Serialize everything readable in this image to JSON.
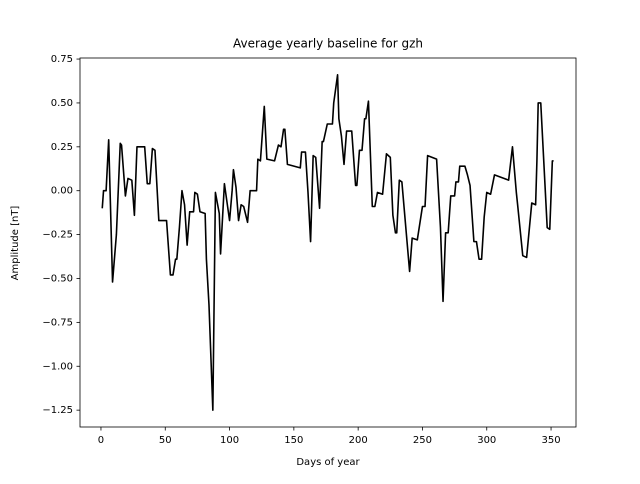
{
  "chart_data": {
    "type": "line",
    "title": "Average yearly baseline for gzh",
    "x_label": "Days of year",
    "y_label": "Amplitude [nT]",
    "color": "#000000",
    "x": [
      1,
      2,
      4,
      6,
      9,
      12,
      15,
      16,
      19,
      21,
      24,
      26,
      28,
      34,
      36,
      38,
      40,
      42,
      45,
      51,
      54,
      56,
      58,
      59,
      61,
      63,
      65,
      67,
      69,
      72,
      73,
      75,
      77,
      81,
      82,
      84,
      87,
      89,
      92,
      93,
      96,
      100,
      102,
      103,
      105,
      107,
      109,
      111,
      114,
      116,
      121,
      122,
      124,
      127,
      129,
      135,
      138,
      140,
      142,
      143,
      145,
      155,
      156,
      159,
      161,
      163,
      165,
      167,
      170,
      172,
      173,
      176,
      180,
      181,
      184,
      185,
      187,
      189,
      191,
      195,
      198,
      199,
      201,
      203,
      205,
      206,
      208,
      211,
      213,
      215,
      219,
      222,
      225,
      227,
      229,
      230,
      232,
      234,
      240,
      242,
      246,
      250,
      252,
      254,
      261,
      264,
      266,
      268,
      270,
      272,
      275,
      276,
      278,
      279,
      283,
      285,
      287,
      290,
      292,
      294,
      296,
      298,
      300,
      303,
      306,
      317,
      320,
      323,
      324,
      328,
      331,
      335,
      338,
      339,
      340,
      342,
      347,
      349,
      351,
      352
    ],
    "values": [
      -0.1,
      0.0,
      0.0,
      0.29,
      -0.52,
      -0.25,
      0.27,
      0.26,
      -0.03,
      0.07,
      0.06,
      -0.14,
      0.25,
      0.25,
      0.04,
      0.04,
      0.24,
      0.23,
      -0.17,
      -0.17,
      -0.48,
      -0.48,
      -0.39,
      -0.39,
      -0.21,
      0.0,
      -0.08,
      -0.31,
      -0.12,
      -0.12,
      -0.01,
      -0.02,
      -0.12,
      -0.13,
      -0.39,
      -0.65,
      -1.25,
      -0.01,
      -0.13,
      -0.36,
      0.04,
      -0.17,
      0.0,
      0.12,
      0.02,
      -0.17,
      -0.08,
      -0.09,
      -0.18,
      0.0,
      0.0,
      0.18,
      0.17,
      0.48,
      0.18,
      0.17,
      0.26,
      0.25,
      0.35,
      0.35,
      0.15,
      0.13,
      0.22,
      0.22,
      -0.01,
      -0.29,
      0.2,
      0.19,
      -0.1,
      0.28,
      0.28,
      0.38,
      0.38,
      0.5,
      0.66,
      0.41,
      0.31,
      0.15,
      0.34,
      0.34,
      0.03,
      0.03,
      0.23,
      0.23,
      0.41,
      0.41,
      0.51,
      -0.09,
      -0.09,
      -0.01,
      -0.02,
      0.21,
      0.19,
      -0.14,
      -0.24,
      -0.24,
      0.06,
      0.05,
      -0.46,
      -0.27,
      -0.28,
      -0.09,
      -0.09,
      0.2,
      0.18,
      -0.21,
      -0.63,
      -0.24,
      -0.24,
      -0.03,
      -0.03,
      0.05,
      0.05,
      0.14,
      0.14,
      0.09,
      0.03,
      -0.29,
      -0.29,
      -0.39,
      -0.39,
      -0.15,
      -0.01,
      -0.02,
      0.09,
      0.06,
      0.25,
      -0.01,
      -0.08,
      -0.37,
      -0.38,
      -0.07,
      -0.08,
      0.17,
      0.5,
      0.5,
      -0.21,
      -0.22,
      0.17,
      0.17
    ],
    "xlim": [
      -16.3,
      369.4
    ],
    "ylim": [
      -1.346,
      0.756
    ],
    "xticks": [
      0,
      50,
      100,
      150,
      200,
      250,
      300,
      350
    ],
    "yticks": [
      {
        "value": -1.25,
        "label": "−1.25"
      },
      {
        "value": -1.0,
        "label": "−1.00"
      },
      {
        "value": -0.75,
        "label": "−0.75"
      },
      {
        "value": -0.5,
        "label": "−0.50"
      },
      {
        "value": -0.25,
        "label": "−0.25"
      },
      {
        "value": 0,
        "label": "0.00"
      },
      {
        "value": 0.25,
        "label": "0.25"
      },
      {
        "value": 0.5,
        "label": "0.50"
      },
      {
        "value": 0.75,
        "label": "0.75"
      }
    ]
  }
}
